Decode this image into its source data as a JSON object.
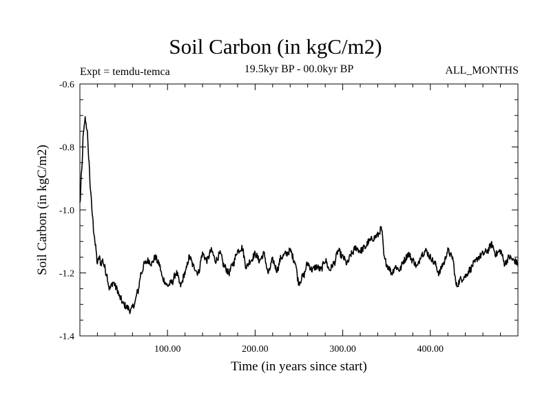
{
  "chart_data": {
    "type": "line",
    "title": "Soil Carbon (in kgC/m2)",
    "subtitle": "19.5kyr BP - 00.0kyr BP",
    "left_annotation": "Expt = temdu-temca",
    "right_annotation": "ALL_MONTHS",
    "xlabel": "Time (in years since start)",
    "ylabel": "Soil Carbon (in kgC/m2)",
    "xlim": [
      0,
      500
    ],
    "ylim": [
      -1.4,
      -0.6
    ],
    "x_ticks": [
      100,
      200,
      300,
      400
    ],
    "x_tick_labels": [
      "100.00",
      "200.00",
      "300.00",
      "400.00"
    ],
    "y_ticks": [
      -1.4,
      -1.2,
      -1.0,
      -0.8,
      -0.6
    ],
    "y_tick_labels": [
      "-1.4",
      "-1.2",
      "-1.0",
      "-0.8",
      "-0.6"
    ],
    "series": [
      {
        "name": "Soil Carbon",
        "color": "#000000",
        "x": [
          0,
          2,
          4,
          6,
          8,
          10,
          12,
          14,
          16,
          18,
          20,
          22,
          24,
          26,
          28,
          30,
          34,
          38,
          42,
          46,
          50,
          54,
          58,
          62,
          66,
          70,
          74,
          78,
          82,
          86,
          90,
          95,
          100,
          105,
          110,
          115,
          120,
          125,
          130,
          135,
          140,
          145,
          150,
          155,
          160,
          165,
          170,
          175,
          180,
          185,
          190,
          195,
          200,
          205,
          210,
          215,
          220,
          225,
          230,
          235,
          240,
          245,
          250,
          255,
          260,
          265,
          270,
          275,
          280,
          285,
          290,
          295,
          300,
          305,
          310,
          315,
          320,
          325,
          330,
          335,
          340,
          344,
          348,
          352,
          356,
          360,
          365,
          370,
          375,
          380,
          385,
          390,
          395,
          400,
          405,
          410,
          415,
          420,
          425,
          430,
          435,
          440,
          445,
          450,
          455,
          460,
          465,
          470,
          475,
          480,
          485,
          490,
          495,
          500
        ],
        "y": [
          -0.98,
          -0.88,
          -0.76,
          -0.71,
          -0.74,
          -0.83,
          -0.93,
          -1.01,
          -1.07,
          -1.12,
          -1.17,
          -1.15,
          -1.17,
          -1.16,
          -1.18,
          -1.2,
          -1.25,
          -1.23,
          -1.25,
          -1.28,
          -1.3,
          -1.31,
          -1.32,
          -1.3,
          -1.26,
          -1.2,
          -1.17,
          -1.16,
          -1.17,
          -1.15,
          -1.17,
          -1.22,
          -1.24,
          -1.23,
          -1.2,
          -1.24,
          -1.2,
          -1.15,
          -1.18,
          -1.2,
          -1.14,
          -1.16,
          -1.13,
          -1.16,
          -1.14,
          -1.18,
          -1.2,
          -1.17,
          -1.13,
          -1.12,
          -1.18,
          -1.16,
          -1.14,
          -1.16,
          -1.14,
          -1.2,
          -1.16,
          -1.19,
          -1.15,
          -1.14,
          -1.13,
          -1.16,
          -1.23,
          -1.21,
          -1.17,
          -1.19,
          -1.18,
          -1.19,
          -1.16,
          -1.19,
          -1.17,
          -1.13,
          -1.15,
          -1.17,
          -1.14,
          -1.12,
          -1.13,
          -1.12,
          -1.1,
          -1.09,
          -1.08,
          -1.06,
          -1.16,
          -1.18,
          -1.2,
          -1.18,
          -1.19,
          -1.16,
          -1.14,
          -1.16,
          -1.18,
          -1.14,
          -1.13,
          -1.15,
          -1.17,
          -1.2,
          -1.17,
          -1.13,
          -1.15,
          -1.24,
          -1.22,
          -1.21,
          -1.19,
          -1.17,
          -1.15,
          -1.14,
          -1.13,
          -1.11,
          -1.14,
          -1.13,
          -1.17,
          -1.15,
          -1.16,
          -1.17
        ]
      }
    ]
  }
}
